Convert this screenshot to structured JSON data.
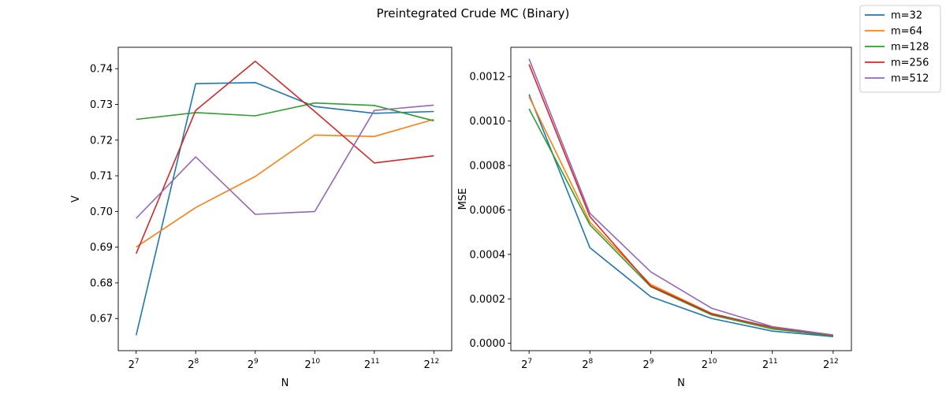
{
  "title": "Preintegrated Crude MC (Binary)",
  "legend": {
    "placement": "upper right (outside axes)",
    "entries": [
      "m=32",
      "m=64",
      "m=128",
      "m=256",
      "m=512"
    ]
  },
  "colors": {
    "m=32": "#1f77b4",
    "m=64": "#ff7f0e",
    "m=128": "#2ca02c",
    "m=256": "#d62728",
    "m=512": "#9467bd"
  },
  "chart_data": [
    {
      "type": "line",
      "xlabel": "N",
      "ylabel": "V",
      "x": [
        7,
        8,
        9,
        10,
        11,
        12
      ],
      "x_tick_base": "2",
      "x_tick_exponents": [
        "7",
        "8",
        "9",
        "10",
        "11",
        "12"
      ],
      "x_scale": "log2",
      "xlim": [
        6.7,
        12.3
      ],
      "ylim": [
        0.661,
        0.746
      ],
      "y_ticks": [
        "0.67",
        "0.68",
        "0.69",
        "0.70",
        "0.71",
        "0.72",
        "0.73",
        "0.74"
      ],
      "y_tick_values": [
        0.67,
        0.68,
        0.69,
        0.7,
        0.71,
        0.72,
        0.73,
        0.74
      ],
      "grid": false,
      "series": [
        {
          "name": "m=32",
          "values": [
            0.6653,
            0.7358,
            0.7361,
            0.7294,
            0.7275,
            0.728
          ]
        },
        {
          "name": "m=64",
          "values": [
            0.69,
            0.7011,
            0.7098,
            0.7214,
            0.721,
            0.7258
          ]
        },
        {
          "name": "m=128",
          "values": [
            0.7258,
            0.7277,
            0.7268,
            0.7304,
            0.7297,
            0.7254
          ]
        },
        {
          "name": "m=256",
          "values": [
            0.6882,
            0.7283,
            0.7421,
            0.728,
            0.7136,
            0.7156
          ]
        },
        {
          "name": "m=512",
          "values": [
            0.6981,
            0.7153,
            0.6992,
            0.7,
            0.7283,
            0.7298
          ]
        }
      ]
    },
    {
      "type": "line",
      "xlabel": "N",
      "ylabel": "MSE",
      "x": [
        7,
        8,
        9,
        10,
        11,
        12
      ],
      "x_tick_base": "2",
      "x_tick_exponents": [
        "7",
        "8",
        "9",
        "10",
        "11",
        "12"
      ],
      "x_scale": "log2",
      "xlim": [
        6.7,
        12.3
      ],
      "ylim": [
        -3.3e-05,
        0.001332
      ],
      "y_ticks": [
        "0.0000",
        "0.0002",
        "0.0004",
        "0.0006",
        "0.0008",
        "0.0010",
        "0.0012"
      ],
      "y_tick_values": [
        0.0,
        0.0002,
        0.0004,
        0.0006,
        0.0008,
        0.001,
        0.0012
      ],
      "grid": false,
      "series": [
        {
          "name": "m=32",
          "values": [
            0.00112,
            0.00043,
            0.00021,
            0.000112,
            5.5e-05,
            3e-05
          ]
        },
        {
          "name": "m=64",
          "values": [
            0.00111,
            0.000545,
            0.000265,
            0.000135,
            6.8e-05,
            3.6e-05
          ]
        },
        {
          "name": "m=128",
          "values": [
            0.001055,
            0.000533,
            0.000255,
            0.000128,
            6.5e-05,
            3.3e-05
          ]
        },
        {
          "name": "m=256",
          "values": [
            0.001255,
            0.00057,
            0.000258,
            0.000133,
            7.2e-05,
            3.6e-05
          ]
        },
        {
          "name": "m=512",
          "values": [
            0.00128,
            0.000585,
            0.000322,
            0.000158,
            7.5e-05,
            3.8e-05
          ]
        }
      ]
    }
  ]
}
